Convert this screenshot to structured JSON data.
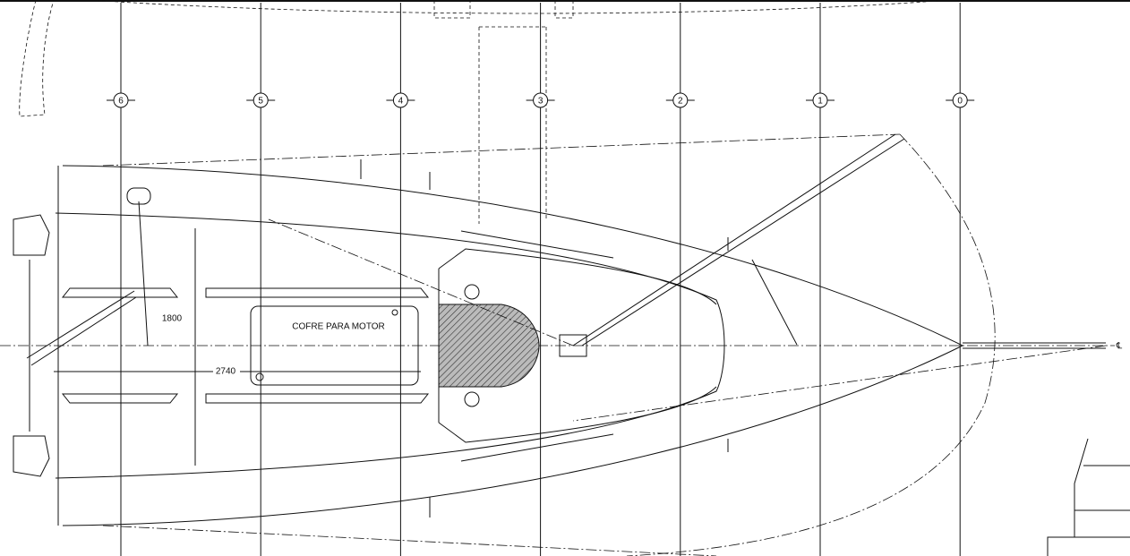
{
  "stations": [
    "6",
    "5",
    "4",
    "3",
    "2",
    "1",
    "0"
  ],
  "dimensions": {
    "beam": "1800",
    "length": "2740"
  },
  "labels": {
    "engine_box": "COFRE PARA MOTOR",
    "centerline": "℄"
  }
}
